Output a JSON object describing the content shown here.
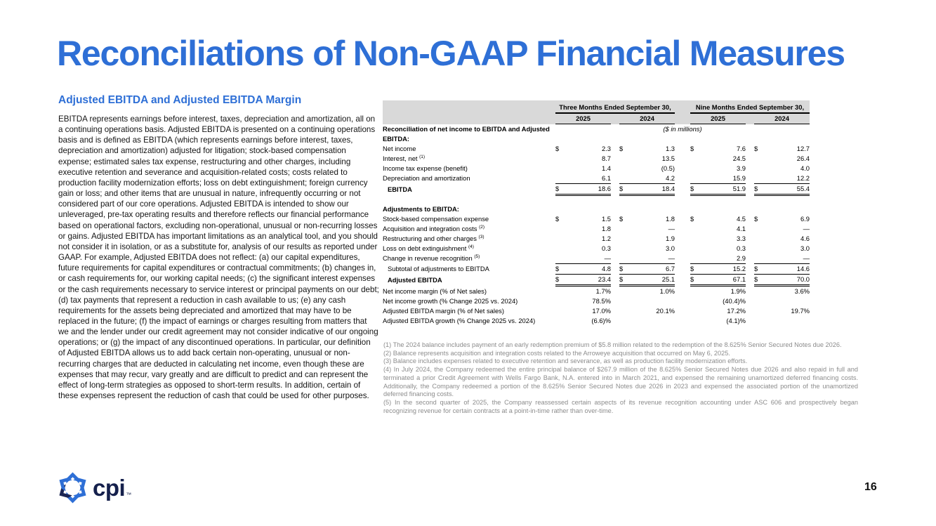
{
  "slide": {
    "title": "Reconciliations of Non-GAAP Financial Measures",
    "page_number": "16"
  },
  "left": {
    "heading": "Adjusted EBITDA and Adjusted EBITDA Margin",
    "body": "EBITDA represents earnings before interest, taxes, depreciation and amortization, all on a continuing operations basis. Adjusted EBITDA is presented on a continuing operations basis and is defined as EBITDA (which represents earnings before interest, taxes, depreciation and amortization) adjusted for litigation; stock-based compensation expense; estimated sales tax expense, restructuring and other charges, including executive retention and severance and acquisition-related costs; costs related to production facility modernization efforts; loss on debt extinguishment; foreign currency gain or loss; and other items that are unusual in nature, infrequently occurring or not considered part of our core operations. Adjusted EBITDA is intended to show our unleveraged, pre-tax operating results and therefore reflects our financial performance based on operational factors, excluding non-operational, unusual or non-recurring losses or gains. Adjusted EBITDA has important limitations as an analytical tool, and you should not consider it in isolation, or as a substitute for, analysis of our results as reported under GAAP. For example, Adjusted EBITDA does not reflect: (a) our capital expenditures, future requirements for capital expenditures or contractual commitments; (b) changes in, or cash requirements for, our working capital needs; (c) the significant interest expenses or the cash requirements necessary to service interest or principal payments on our debt; (d) tax payments that represent a reduction in cash available to us; (e) any cash requirements for the assets being depreciated and amortized that may have to be replaced in the future; (f) the impact of earnings or charges resulting from matters that we and the lender under our credit agreement may not consider indicative of our ongoing operations; or (g) the impact of any discontinued operations. In particular, our definition of Adjusted EBITDA allows us to add back certain non-operating, unusual or non-recurring charges that are deducted in calculating net income, even though these are expenses that may recur, vary greatly and are difficult to predict and can represent the effect of long-term strategies as opposed to short-term results. In addition, certain of these expenses represent the reduction of cash that could be used for other purposes."
  },
  "table": {
    "group_headers": [
      "Three Months Ended September 30,",
      "Nine Months Ended September 30,"
    ],
    "year_headers": [
      "2025",
      "2024",
      "2025",
      "2024"
    ],
    "section1_label": "Reconciliation of net income to EBITDA and Adjusted EBITDA:",
    "units_note": "($ in millions)",
    "rows": [
      {
        "type": "data",
        "label": "Net income",
        "dollars": true,
        "values": [
          "2.3",
          "1.3",
          "7.6",
          "12.7"
        ]
      },
      {
        "type": "data",
        "label": "Interest, net",
        "sup": "(1)",
        "values": [
          "8.7",
          "13.5",
          "24.5",
          "26.4"
        ]
      },
      {
        "type": "data",
        "label": "Income tax expense (benefit)",
        "values": [
          "1.4",
          "(0.5)",
          "3.9",
          "4.0"
        ]
      },
      {
        "type": "data",
        "label": "Depreciation and amortization",
        "values": [
          "6.1",
          "4.2",
          "15.9",
          "12.2"
        ],
        "rule": "single"
      },
      {
        "type": "data",
        "label": "EBITDA",
        "bold": true,
        "indent": true,
        "dollars": true,
        "values": [
          "18.6",
          "18.4",
          "51.9",
          "55.4"
        ],
        "rule": "double"
      },
      {
        "type": "spacer"
      },
      {
        "type": "section",
        "label": "Adjustments to EBITDA:"
      },
      {
        "type": "data",
        "label": "Stock-based compensation expense",
        "dollars": true,
        "values": [
          "1.5",
          "1.8",
          "4.5",
          "6.9"
        ]
      },
      {
        "type": "data",
        "label": "Acquisition and integration costs",
        "sup": "(2)",
        "values": [
          "1.8",
          "—",
          "4.1",
          "—"
        ]
      },
      {
        "type": "data",
        "label": "Restructuring and other charges",
        "sup": "(3)",
        "values": [
          "1.2",
          "1.9",
          "3.3",
          "4.6"
        ]
      },
      {
        "type": "data",
        "label": "Loss on debt extinguishment",
        "sup": "(4)",
        "values": [
          "0.3",
          "3.0",
          "0.3",
          "3.0"
        ]
      },
      {
        "type": "data",
        "label": "Change in revenue recognition",
        "sup": "(5)",
        "values": [
          "—",
          "—",
          "2.9",
          "—"
        ],
        "rule": "single"
      },
      {
        "type": "data",
        "label": "Subtotal of adjustments to EBITDA",
        "indent": true,
        "dollars": true,
        "values": [
          "4.8",
          "6.7",
          "15.2",
          "14.6"
        ],
        "rule": "single"
      },
      {
        "type": "data",
        "label": "Adjusted EBITDA",
        "bold": true,
        "indent": true,
        "dollars": true,
        "values": [
          "23.4",
          "25.1",
          "67.1",
          "70.0"
        ],
        "rule": "double"
      },
      {
        "type": "data",
        "label": "Net income margin (% of Net sales)",
        "values": [
          "1.7%",
          "1.0%",
          "1.9%",
          "3.6%"
        ]
      },
      {
        "type": "data",
        "label": "Net income growth (% Change 2025 vs. 2024)",
        "values": [
          "78.5%",
          "",
          "(40.4)%",
          ""
        ]
      },
      {
        "type": "data",
        "label": "Adjusted EBITDA margin (% of Net sales)",
        "values": [
          "17.0%",
          "20.1%",
          "17.2%",
          "19.7%"
        ]
      },
      {
        "type": "data",
        "label": "Adjusted EBITDA growth (% Change 2025 vs. 2024)",
        "values": [
          "(6.6)%",
          "",
          "(4.1)%",
          ""
        ]
      }
    ]
  },
  "footnotes": [
    "(1) The 2024 balance includes payment of an early redemption premium of $5.8 million related to the redemption of the 8.625% Senior Secured Notes due 2026.",
    "(2) Balance represents acquisition and integration costs related to the Arroweye acquisition that occurred on May 6, 2025.",
    "(3) Balance includes expenses related to executive retention and severance, as well as production facility modernization efforts.",
    "(4) In July 2024, the Company redeemed the entire principal balance of $267.9 million of the 8.625% Senior Secured Notes due 2026 and also repaid in full and terminated a prior Credit Agreement with Wells Fargo Bank, N.A. entered into in March 2021, and expensed the remaining unamortized deferred financing costs. Additionally, the Company redeemed a portion of the 8.625% Senior Secured Notes due 2026 in 2023 and expensed the associated portion of the unamortized deferred financing costs.",
    "(5) In the second quarter of 2025, the Company reassessed certain aspects of its revenue recognition accounting under ASC 606 and prospectively began recognizing revenue for certain contracts at a point-in-time rather than over-time."
  ],
  "logo": {
    "wordmark": "cpi",
    "tm": "™",
    "colors": {
      "blue": "#2e6fd6",
      "navy": "#1b2553",
      "wordmark_navy": "#15204c"
    }
  }
}
